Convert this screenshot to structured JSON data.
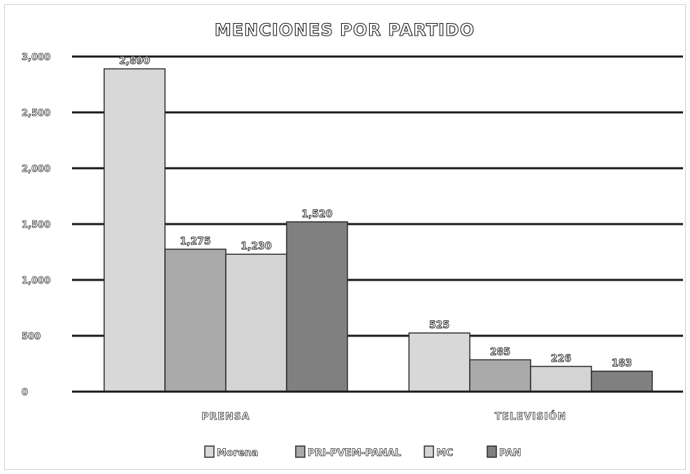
{
  "chart_data": {
    "type": "bar",
    "title": "MENCIONES POR PARTIDO",
    "xlabel": "",
    "ylabel": "",
    "categories": [
      "PRENSA",
      "TELEVISIÓN"
    ],
    "ylim": [
      0,
      3000
    ],
    "yticks": [
      0,
      500,
      1000,
      1500,
      2000,
      2500,
      3000
    ],
    "ytick_labels": [
      "0",
      "500",
      "1,000",
      "1,500",
      "2,000",
      "2,500",
      "3,000"
    ],
    "series": [
      {
        "name": "Morena",
        "values": [
          2890,
          525
        ],
        "labels": [
          "2,890",
          "525"
        ],
        "color": "#d8d8d8"
      },
      {
        "name": "PRI-PVEM-PANAL",
        "values": [
          1275,
          285
        ],
        "labels": [
          "1,275",
          "285"
        ],
        "color": "#aaaaaa"
      },
      {
        "name": "MC",
        "values": [
          1230,
          226
        ],
        "labels": [
          "1,230",
          "226"
        ],
        "color": "#d4d4d4"
      },
      {
        "name": "PAN",
        "values": [
          1520,
          183
        ],
        "labels": [
          "1,520",
          "183"
        ],
        "color": "#808080"
      }
    ],
    "grid": true,
    "legend_position": "bottom"
  }
}
